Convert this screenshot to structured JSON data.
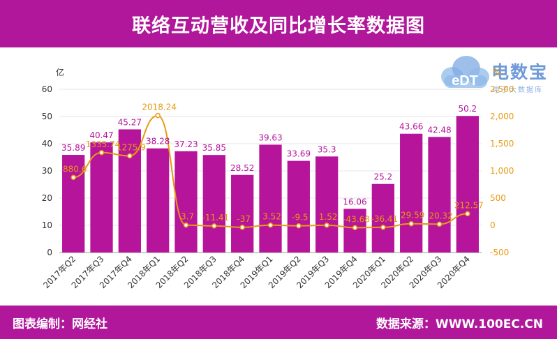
{
  "title": "联络互动营收及同比增长率数据图",
  "footer": {
    "left": "图表编制：网经社",
    "right": "数据来源：WWW.100EC.CN"
  },
  "watermark": {
    "logo_text": "eDT",
    "brand": "电数宝",
    "sub": "电子大数据库",
    "icon": "cloud-logo-icon"
  },
  "colors": {
    "brand": "#b0179a",
    "bar": "#b6149b",
    "bar_label": "#b6149b",
    "line": "#e79a12",
    "line_label": "#e79a12"
  },
  "chart_data": {
    "type": "bar",
    "categories": [
      "2017年Q2",
      "2017年Q3",
      "2017年Q4",
      "2018年Q1",
      "2018年Q2",
      "2018年Q3",
      "2018年Q4",
      "2019年Q1",
      "2019年Q2",
      "2019年Q3",
      "2019年Q4",
      "2020年Q1",
      "2020年Q2",
      "2020年Q3",
      "2020年Q4"
    ],
    "series": [
      {
        "type": "bar",
        "axis": "left",
        "values": [
          35.89,
          40.47,
          45.27,
          38.28,
          37.23,
          35.85,
          28.52,
          39.63,
          33.69,
          35.3,
          16.06,
          25.2,
          43.66,
          42.48,
          50.2
        ],
        "labels": [
          "35.89",
          "40.47",
          "45.27",
          "38.28",
          "37.23",
          "35.85",
          "28.52",
          "39.63",
          "33.69",
          "35.3",
          "16.06",
          "25.2",
          "43.66",
          "42.48",
          "50.2"
        ]
      },
      {
        "type": "line",
        "axis": "right",
        "values": [
          880.6,
          1335.74,
          1275.9,
          2018.24,
          3.7,
          -11.41,
          -37,
          3.52,
          -9.5,
          1.52,
          -43.68,
          -36.41,
          29.59,
          20.32,
          212.57
        ],
        "labels": [
          "880.6",
          "1335.74",
          "1275.9",
          "2018.24",
          "3.7",
          "-11.41",
          "-37",
          "3.52",
          "-9.5",
          "1.52",
          "-43.68",
          "-36.41",
          "29.59",
          "20.32",
          "212.57"
        ]
      }
    ],
    "ylabel": "亿",
    "y2label": "%",
    "ylim": [
      0,
      60
    ],
    "y2lim": [
      -500,
      2500
    ],
    "yticks": [
      "0",
      "10",
      "20",
      "30",
      "40",
      "50",
      "60"
    ],
    "y2ticks": [
      "-500",
      "0",
      "500",
      "1,000",
      "1,500",
      "2,000",
      "2,500"
    ],
    "grid": true,
    "legend": "none"
  }
}
